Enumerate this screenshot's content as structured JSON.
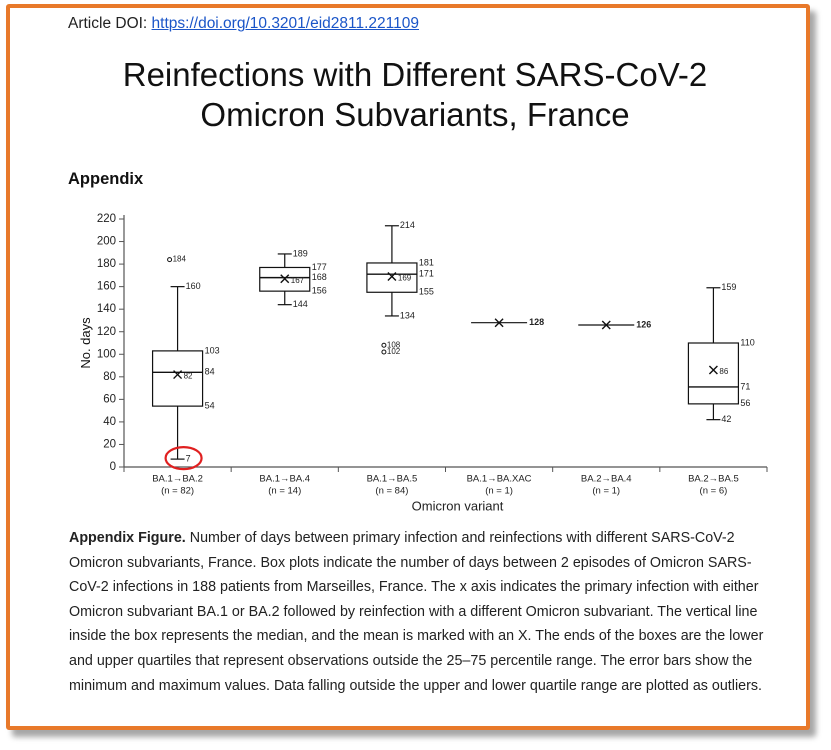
{
  "article": {
    "doi_label": "Article DOI:",
    "doi_link": "https://doi.org/10.3201/eid2811.221109"
  },
  "title_lines": [
    "Reinfections with Different SARS-CoV-2",
    "Omicron Subvariants, France"
  ],
  "section_heading": "Appendix",
  "caption": {
    "label": "Appendix Figure.",
    "text": " Number of days between primary infection and reinfections with different SARS-CoV-2 Omicron subvariants, France. Box plots indicate the number of days between 2 episodes of Omicron SARS-CoV-2 infections in 188 patients from Marseilles, France. The x axis indicates the primary infection with either Omicron subvariant BA.1 or BA.2 followed by reinfection with a different Omicron subvariant. The vertical line inside the box represents the median, and the mean is marked with an X. The ends of the boxes are the lower and upper quartiles that represent observations outside the 25–75 percentile range. The error bars show the minimum and maximum values. Data falling outside the upper and lower quartile range are plotted as outliers."
  },
  "colors": {
    "frame": "#e8792a",
    "link": "#1a55c8",
    "highlight": "#e02020",
    "axis": "#555555"
  },
  "chart_data": {
    "type": "box",
    "xlabel": "Omicron variant",
    "ylabel": "No. days",
    "ylim": [
      0,
      220
    ],
    "yticks": [
      0,
      20,
      40,
      60,
      80,
      100,
      120,
      140,
      160,
      180,
      200,
      220
    ],
    "grid": false,
    "groups": [
      {
        "label": "BA.1→BA.2",
        "n": "(n = 82)",
        "min": 7,
        "q1": 54,
        "median": 84,
        "q3": 103,
        "max": 160,
        "mean": 82,
        "outliers": [
          184
        ],
        "labels": {
          "max": "160",
          "q3": "103",
          "median": "84",
          "q1": "54",
          "min": "7",
          "mean": "82",
          "outliers": [
            "184"
          ]
        }
      },
      {
        "label": "BA.1→BA.4",
        "n": "(n = 14)",
        "min": 144,
        "q1": 156,
        "median": 168,
        "q3": 177,
        "max": 189,
        "mean": 167,
        "outliers": [],
        "labels": {
          "max": "189",
          "q3": "177",
          "median": "168",
          "q1": "156",
          "min": "144",
          "mean": "167",
          "outliers": []
        }
      },
      {
        "label": "BA.1→BA.5",
        "n": "(n = 84)",
        "min": 134,
        "q1": 155,
        "median": 171,
        "q3": 181,
        "max": 214,
        "mean": 169,
        "outliers": [
          108,
          102
        ],
        "labels": {
          "max": "214",
          "q3": "181",
          "median": "171",
          "q1": "155",
          "min": "134",
          "mean": "169",
          "outliers": [
            "108",
            "102"
          ]
        }
      },
      {
        "label": "BA.1→BA.XAC",
        "n": "(n = 1)",
        "single": 128,
        "mean": 128,
        "labels": {
          "single": "128"
        }
      },
      {
        "label": "BA.2→BA.4",
        "n": "(n = 1)",
        "single": 126,
        "mean": 126,
        "labels": {
          "single": "126"
        }
      },
      {
        "label": "BA.2→BA.5",
        "n": "(n = 6)",
        "min": 42,
        "q1": 56,
        "median": 71,
        "q3": 110,
        "max": 159,
        "mean": 86,
        "outliers": [],
        "labels": {
          "max": "159",
          "q3": "110",
          "median": "71",
          "q1": "56",
          "min": "42",
          "mean": "86",
          "outliers": []
        }
      }
    ],
    "highlighted_value": {
      "group": 0,
      "value": 7
    }
  }
}
